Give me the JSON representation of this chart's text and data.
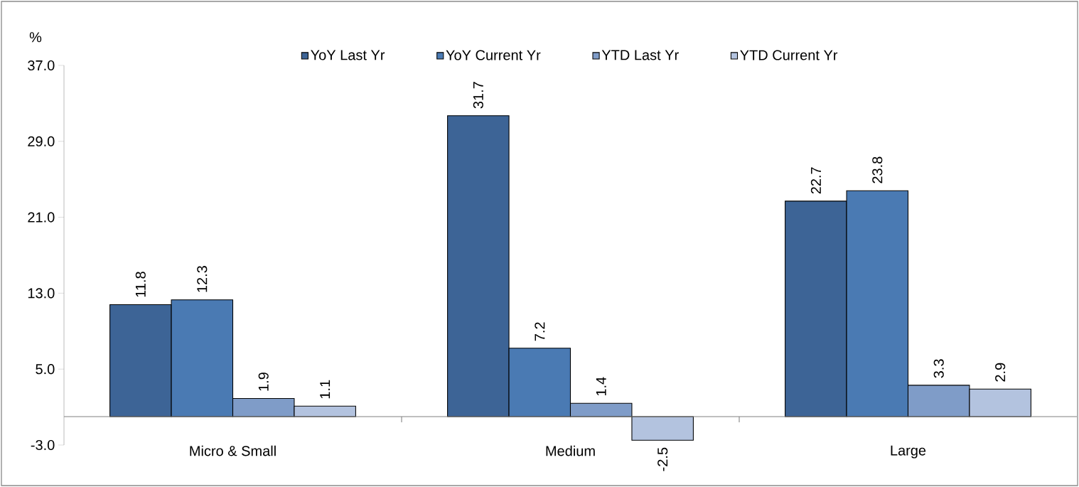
{
  "chart_data": {
    "type": "bar",
    "ylabel": "%",
    "categories": [
      "Micro & Small",
      "Medium",
      "Large"
    ],
    "series": [
      {
        "name": "YoY Last Yr",
        "color": "#3d6496",
        "values": [
          11.8,
          31.7,
          22.7
        ]
      },
      {
        "name": "YoY Current Yr",
        "color": "#4a7ab3",
        "values": [
          12.3,
          7.2,
          23.8
        ]
      },
      {
        "name": "YTD Last Yr",
        "color": "#7f9cc8",
        "values": [
          1.9,
          1.4,
          3.3
        ]
      },
      {
        "name": "YTD Current Yr",
        "color": "#b3c3df",
        "values": [
          1.1,
          -2.5,
          2.9
        ]
      }
    ],
    "ylim": [
      -3,
      37
    ],
    "yticks": [
      {
        "value": -3,
        "label": "-3.0"
      },
      {
        "value": 5,
        "label": "5.0"
      },
      {
        "value": 13,
        "label": "13.0"
      },
      {
        "value": 21,
        "label": "21.0"
      },
      {
        "value": 29,
        "label": "29.0"
      },
      {
        "value": 37,
        "label": "37.0"
      }
    ],
    "data_labels": true,
    "legend": "top"
  }
}
